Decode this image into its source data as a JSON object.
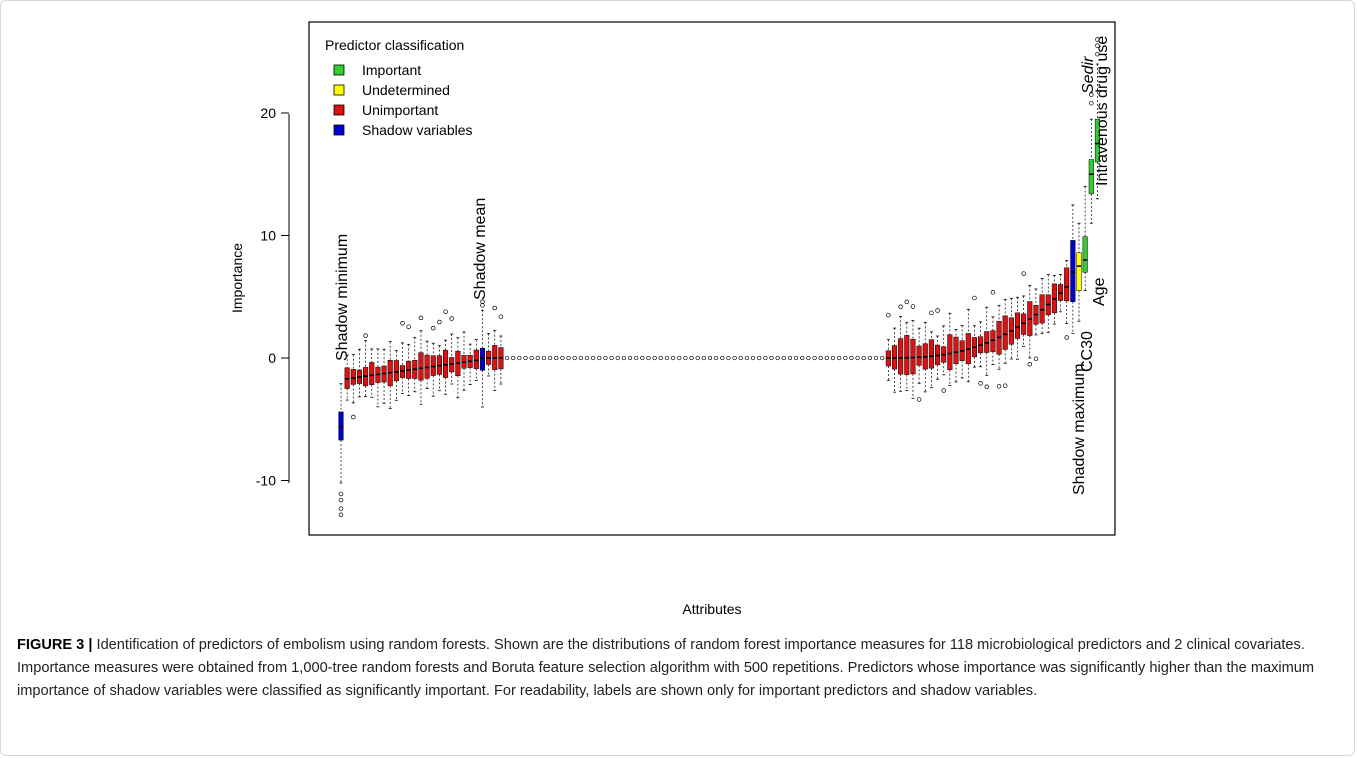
{
  "chart_data": {
    "type": "box",
    "xlabel": "Attributes",
    "ylabel": "Importance",
    "ylim": [
      -14,
      27
    ],
    "y_ticks": [
      -10,
      0,
      10,
      20
    ],
    "grid": false,
    "legend": {
      "title": "Predictor classification",
      "placement": "top-left",
      "items": [
        {
          "label": "Important",
          "color": "#33cc33"
        },
        {
          "label": "Undetermined",
          "color": "#ffff00"
        },
        {
          "label": "Unimportant",
          "color": "#dd1111"
        },
        {
          "label": "Shadow variables",
          "color": "#0000cc"
        }
      ]
    },
    "colors": {
      "Important": "#33cc33",
      "Undetermined": "#ffff00",
      "Unimportant": "#dd1111",
      "Shadow": "#0000cc"
    },
    "total_attributes": 123,
    "labeled_boxes": [
      {
        "label": "Shadow minimum",
        "position": 1,
        "class": "Shadow",
        "median": -5.6,
        "q1": -6.7,
        "q3": -4.4,
        "whisker_low": -10.2,
        "whisker_high": -2.1,
        "outliers": [
          -11.1,
          -11.6,
          -12.3,
          -12.8
        ]
      },
      {
        "label": "Shadow mean",
        "position": 24,
        "class": "Shadow",
        "median": 0.0,
        "q1": -1.0,
        "q3": 0.8,
        "whisker_low": -4.0,
        "whisker_high": 3.9,
        "outliers": [
          4.3,
          4.6
        ]
      },
      {
        "label": "Shadow maximum",
        "position": 120,
        "class": "Shadow",
        "median": 7.0,
        "q1": 4.6,
        "q3": 9.6,
        "whisker_low": 2.0,
        "whisker_high": 12.5,
        "outliers": []
      },
      {
        "label": "CC30",
        "position": 121,
        "class": "Undetermined",
        "median": 7.5,
        "q1": 5.5,
        "q3": 8.6,
        "whisker_low": 3.0,
        "whisker_high": 11.0,
        "outliers": []
      },
      {
        "label": "Age",
        "position": 122,
        "class": "Important",
        "median": 8.0,
        "q1": 7.0,
        "q3": 9.9,
        "whisker_low": 5.5,
        "whisker_high": 14.0,
        "outliers": []
      },
      {
        "label": "Sedir",
        "position": 123,
        "class": "Important",
        "median": 15.0,
        "q1": 13.4,
        "q3": 16.2,
        "whisker_low": 11.0,
        "whisker_high": 19.5,
        "outliers": [
          20.8,
          21.5
        ]
      },
      {
        "label": "Intravenous drug use",
        "position": 124,
        "class": "Important",
        "median": 17.5,
        "q1": 16.0,
        "q3": 19.5,
        "whisker_low": 13.0,
        "whisker_high": 24.0,
        "outliers": [
          24.8,
          25.5,
          26.0
        ]
      }
    ],
    "unlabeled_groups": [
      {
        "class": "Unimportant",
        "from_position": 2,
        "to_position": 23,
        "median_start": -1.7,
        "median_end": -0.2,
        "box_half_height": 0.8
      },
      {
        "class": "Unimportant",
        "from_position": 25,
        "to_position": 27,
        "median_start": 0.0,
        "median_end": 0.0,
        "box_half_height": 0.8
      },
      {
        "class": "Unimportant",
        "from_position": 28,
        "to_position": 89,
        "median_start": 0.0,
        "median_end": 0.0,
        "box_half_height": 0.0
      },
      {
        "class": "Unimportant",
        "from_position": 90,
        "to_position": 119,
        "median_start": 0.0,
        "median_end": 5.8,
        "box_half_height": 1.0
      }
    ]
  },
  "caption": {
    "label": "FIGURE 3 |",
    "text": "Identification of predictors of embolism using random forests. Shown are the distributions of random forest importance measures for 118 microbiological predictors and 2 clinical covariates. Importance measures were obtained from 1,000-tree random forests and Boruta feature selection algorithm with 500 repetitions. Predictors whose importance was significantly higher than the maximum importance of shadow variables were classified as significantly important. For readability, labels are shown only for important predictors and shadow variables."
  }
}
